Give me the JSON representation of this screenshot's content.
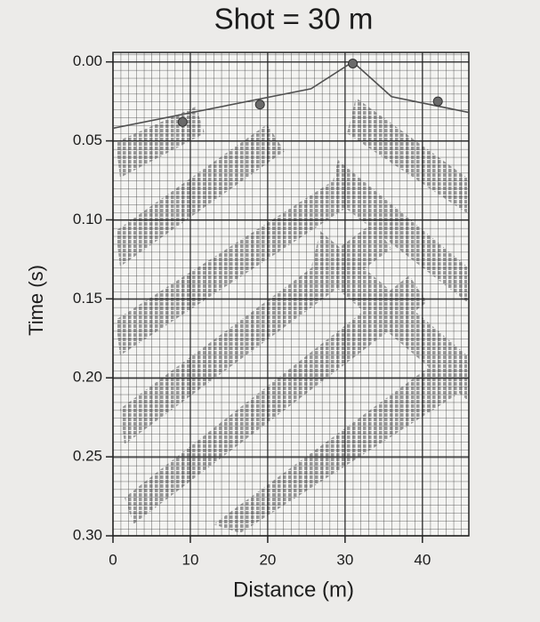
{
  "chart_data": {
    "type": "line",
    "title": "Shot = 30 m",
    "x_label": "Distance (m)",
    "y_label": "Time (s)",
    "x": [
      0,
      25.6,
      31,
      36,
      46
    ],
    "series": [
      {
        "color": "#505050",
        "values": [
          0.042,
          0.017,
          0.0,
          0.022,
          0.032
        ]
      }
    ],
    "picks": {
      "x": [
        9,
        19,
        31,
        42
      ],
      "values": [
        0.038,
        0.027,
        0.001,
        0.025
      ],
      "color": "#6a6a6a"
    },
    "xlim": [
      0,
      46
    ],
    "ylim": [
      -0.006,
      0.3
    ],
    "y_inverted": true,
    "xticks": [
      0,
      10,
      20,
      30,
      40
    ],
    "yticks": [
      {
        "value": 0,
        "label": "0.00"
      },
      {
        "value": 0.05,
        "label": "0.05"
      },
      {
        "value": 0.1,
        "label": "0.10"
      },
      {
        "value": 0.15,
        "label": "0.15"
      },
      {
        "value": 0.2,
        "label": "0.20"
      },
      {
        "value": 0.25,
        "label": "0.25"
      },
      {
        "value": 0.3,
        "label": "0.30"
      }
    ],
    "grid": true
  }
}
